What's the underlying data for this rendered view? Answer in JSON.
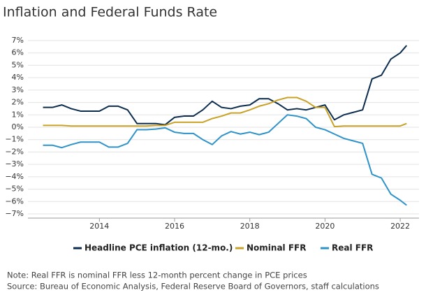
{
  "chart_data": {
    "type": "line",
    "title": "Inflation and Federal Funds Rate",
    "note": "Note: Real FFR is nominal FFR less 12-month percent change in PCE prices",
    "source": "Source: Bureau of Economic Analysis, Federal Reserve Board of Governors, staff calculations",
    "x": [
      2012.5,
      2012.75,
      2013,
      2013.25,
      2013.5,
      2013.75,
      2014,
      2014.25,
      2014.5,
      2014.75,
      2015,
      2015.25,
      2015.5,
      2015.75,
      2016,
      2016.25,
      2016.5,
      2016.75,
      2017,
      2017.25,
      2017.5,
      2017.75,
      2018,
      2018.25,
      2018.5,
      2018.75,
      2019,
      2019.25,
      2019.5,
      2019.75,
      2020,
      2020.25,
      2020.5,
      2020.75,
      2021,
      2021.25,
      2021.5,
      2021.75,
      2022,
      2022.17
    ],
    "series": [
      {
        "name": "Headline PCE inflation (12-mo.)",
        "color": "#0d2d4f",
        "values": [
          1.6,
          1.6,
          1.8,
          1.5,
          1.3,
          1.3,
          1.3,
          1.7,
          1.7,
          1.4,
          0.3,
          0.3,
          0.3,
          0.2,
          0.8,
          0.9,
          0.9,
          1.4,
          2.1,
          1.6,
          1.5,
          1.7,
          1.8,
          2.3,
          2.3,
          1.9,
          1.4,
          1.5,
          1.4,
          1.6,
          1.8,
          0.6,
          1.0,
          1.2,
          1.4,
          3.9,
          4.2,
          5.5,
          6.0,
          6.6
        ]
      },
      {
        "name": "Nominal FFR",
        "color": "#c9a227",
        "values": [
          0.15,
          0.15,
          0.15,
          0.1,
          0.1,
          0.1,
          0.1,
          0.1,
          0.1,
          0.1,
          0.1,
          0.1,
          0.15,
          0.15,
          0.4,
          0.4,
          0.4,
          0.4,
          0.7,
          0.9,
          1.15,
          1.15,
          1.4,
          1.7,
          1.9,
          2.2,
          2.4,
          2.4,
          2.1,
          1.6,
          1.6,
          0.05,
          0.1,
          0.1,
          0.1,
          0.1,
          0.1,
          0.1,
          0.1,
          0.3
        ]
      },
      {
        "name": "Real FFR",
        "color": "#2e93c9",
        "values": [
          -1.45,
          -1.45,
          -1.65,
          -1.4,
          -1.2,
          -1.2,
          -1.2,
          -1.6,
          -1.6,
          -1.3,
          -0.2,
          -0.2,
          -0.15,
          -0.05,
          -0.4,
          -0.5,
          -0.5,
          -1.0,
          -1.4,
          -0.7,
          -0.35,
          -0.55,
          -0.4,
          -0.6,
          -0.4,
          0.3,
          1.0,
          0.9,
          0.7,
          0,
          -0.2,
          -0.55,
          -0.9,
          -1.1,
          -1.3,
          -3.8,
          -4.1,
          -5.4,
          -5.9,
          -6.3
        ]
      }
    ],
    "xlim": [
      2012.1,
      2022.5
    ],
    "xticks": [
      2014,
      2016,
      2018,
      2020,
      2022
    ],
    "ylim": [
      -7,
      7
    ],
    "yticks": [
      {
        "value": -7,
        "label": "−7%"
      },
      {
        "value": -6,
        "label": "−6%"
      },
      {
        "value": -5,
        "label": "−5%"
      },
      {
        "value": -4,
        "label": "−4%"
      },
      {
        "value": -3,
        "label": "−3%"
      },
      {
        "value": -2,
        "label": "−2%"
      },
      {
        "value": -1,
        "label": "−1%"
      },
      {
        "value": 0,
        "label": "0%"
      },
      {
        "value": 1,
        "label": "1%"
      },
      {
        "value": 2,
        "label": "2%"
      },
      {
        "value": 3,
        "label": "3%"
      },
      {
        "value": 4,
        "label": "4%"
      },
      {
        "value": 5,
        "label": "5%"
      },
      {
        "value": 6,
        "label": "6%"
      },
      {
        "value": 7,
        "label": "7%"
      }
    ],
    "grid": true
  }
}
